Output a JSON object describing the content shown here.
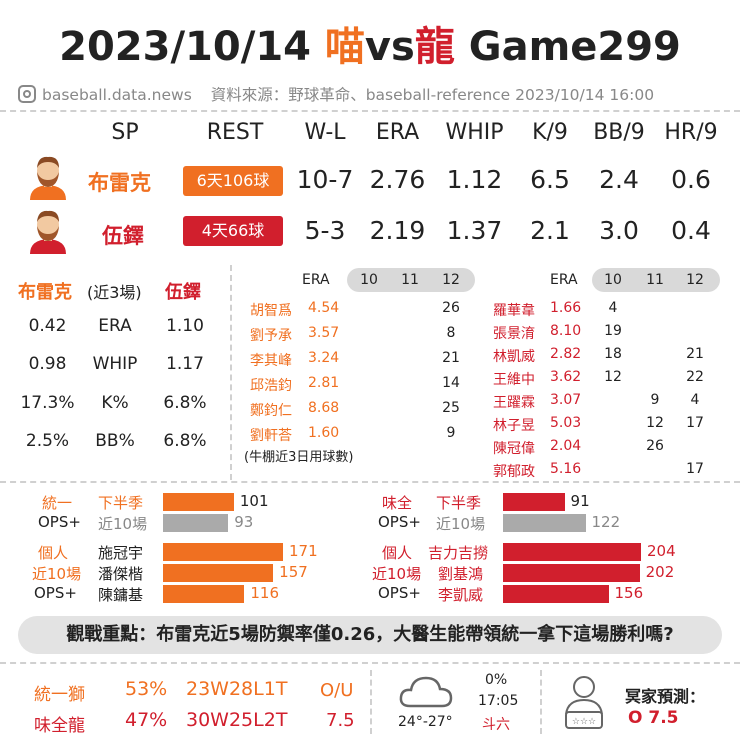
{
  "title": {
    "date": "2023/10/14",
    "team_a": "喵",
    "vs": "vs",
    "team_b": "龍",
    "game": "Game299"
  },
  "source": {
    "handle": "baseball.data.news",
    "credit": "資料來源：野球革命、baseball-reference  2023/10/14  16:00"
  },
  "sp_table": {
    "headers": [
      "SP",
      "REST",
      "W-L",
      "ERA",
      "WHIP",
      "K/9",
      "BB/9",
      "HR/9"
    ],
    "rows": [
      {
        "name": "布雷克",
        "rest": "6天106球",
        "wl": "10-7",
        "era": "2.76",
        "whip": "1.12",
        "k9": "6.5",
        "bb9": "2.4",
        "hr9": "0.6",
        "color": "#f07021"
      },
      {
        "name": "伍鐸",
        "rest": "4天66球",
        "wl": "5-3",
        "era": "2.19",
        "whip": "1.37",
        "k9": "2.1",
        "bb9": "3.0",
        "hr9": "0.4",
        "color": "#d11f2d"
      }
    ]
  },
  "recent": {
    "left_name": "布雷克",
    "mid_label": "(近3場)",
    "right_name": "伍鐸",
    "rows": [
      {
        "left": "0.42",
        "stat": "ERA",
        "right": "1.10"
      },
      {
        "left": "0.98",
        "stat": "WHIP",
        "right": "1.17"
      },
      {
        "left": "17.3%",
        "stat": "K%",
        "right": "6.8%"
      },
      {
        "left": "2.5%",
        "stat": "BB%",
        "right": "6.8%"
      }
    ]
  },
  "bullpen_left": {
    "era_header": "ERA",
    "days": [
      "10",
      "11",
      "12"
    ],
    "rows": [
      {
        "name": "胡智爲",
        "era": "4.54",
        "d10": "",
        "d11": "",
        "d12": "26"
      },
      {
        "name": "劉予承",
        "era": "3.57",
        "d10": "",
        "d11": "",
        "d12": "8"
      },
      {
        "name": "李其峰",
        "era": "3.24",
        "d10": "",
        "d11": "",
        "d12": "21"
      },
      {
        "name": "邱浩鈞",
        "era": "2.81",
        "d10": "",
        "d11": "",
        "d12": "14"
      },
      {
        "name": "鄭鈞仁",
        "era": "8.68",
        "d10": "",
        "d11": "",
        "d12": "25"
      },
      {
        "name": "劉軒荅",
        "era": "1.60",
        "d10": "",
        "d11": "",
        "d12": "9"
      }
    ],
    "note": "(牛棚近3日用球數)"
  },
  "bullpen_right": {
    "era_header": "ERA",
    "days": [
      "10",
      "11",
      "12"
    ],
    "rows": [
      {
        "name": "羅華韋",
        "era": "1.66",
        "d10": "4",
        "d11": "",
        "d12": ""
      },
      {
        "name": "張景淯",
        "era": "8.10",
        "d10": "19",
        "d11": "",
        "d12": ""
      },
      {
        "name": "林凱威",
        "era": "2.82",
        "d10": "18",
        "d11": "",
        "d12": "21"
      },
      {
        "name": "王維中",
        "era": "3.62",
        "d10": "12",
        "d11": "",
        "d12": "22"
      },
      {
        "name": "王躍霖",
        "era": "3.07",
        "d10": "",
        "d11": "9",
        "d12": "4"
      },
      {
        "name": "林子昱",
        "era": "5.03",
        "d10": "",
        "d11": "12",
        "d12": "17"
      },
      {
        "name": "陳冠偉",
        "era": "2.04",
        "d10": "",
        "d11": "26",
        "d12": ""
      },
      {
        "name": "郭郁政",
        "era": "5.16",
        "d10": "",
        "d11": "",
        "d12": "17"
      }
    ]
  },
  "ops_left": {
    "team_label": "統一",
    "team_sub": "OPS+",
    "bars": [
      {
        "label": "下半季",
        "value": 101,
        "text": "101"
      },
      {
        "label": "近10場",
        "value": 93,
        "text": "93"
      }
    ],
    "ind_labels": [
      "個人",
      "近10場",
      "OPS+"
    ],
    "players": [
      {
        "name": "施冠宇",
        "value": 171,
        "text": "171"
      },
      {
        "name": "潘傑楷",
        "value": 157,
        "text": "157"
      },
      {
        "name": "陳鏞基",
        "value": 116,
        "text": "116"
      }
    ]
  },
  "ops_right": {
    "team_label": "味全",
    "team_sub": "OPS+",
    "bars": [
      {
        "label": "下半季",
        "value": 91,
        "text": "91"
      },
      {
        "label": "近10場",
        "value": 122,
        "text": "122"
      }
    ],
    "ind_labels": [
      "個人",
      "近10場",
      "OPS+"
    ],
    "players": [
      {
        "name": "吉力吉撈",
        "value": 204,
        "text": "204"
      },
      {
        "name": "劉基鴻",
        "value": 202,
        "text": "202"
      },
      {
        "name": "李凱威",
        "value": 156,
        "text": "156"
      }
    ]
  },
  "banner": "觀戰重點：布雷克近5場防禦率僅0.26，大醫生能帶領統一拿下這場勝利嗎?",
  "bottom": {
    "teams": [
      {
        "name": "統一獅",
        "pct": "53%",
        "record": "23W28L1T"
      },
      {
        "name": "味全龍",
        "pct": "47%",
        "record": "30W25L2T"
      }
    ],
    "ou_label": "O/U",
    "ou_value": "7.5",
    "weather": {
      "temp": "24°-27°",
      "rain": "0%",
      "time": "17:05",
      "venue": "斗六"
    },
    "predict_label": "冥家預測：",
    "predict_value": "O  7.5"
  },
  "colors": {
    "orange": "#f07021",
    "red": "#d11f2d",
    "gray": "#aaaaaa"
  }
}
